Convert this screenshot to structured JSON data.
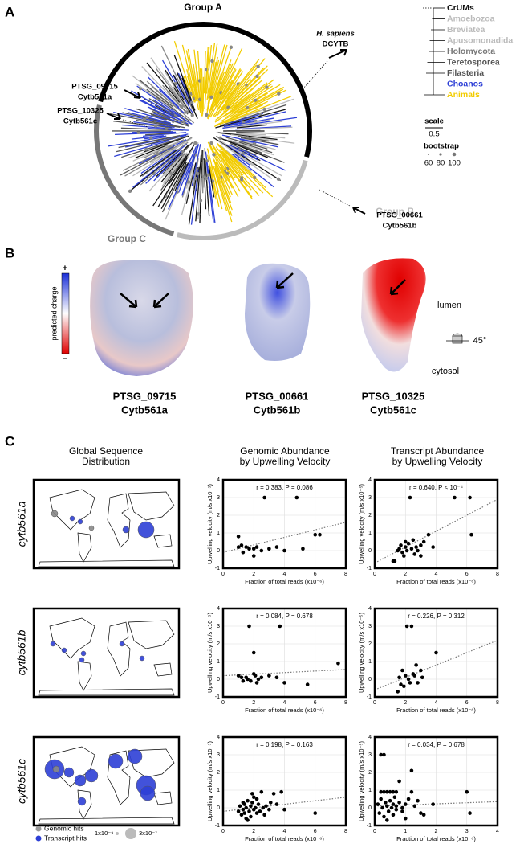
{
  "panel_a": {
    "label": "A",
    "group_a": "Group A",
    "group_b": "Group B",
    "group_c": "Group C",
    "callouts": [
      {
        "line1": "H. sapiens",
        "line2": "DCYTB"
      },
      {
        "line1": "PTSG_09715",
        "line2": "Cytb561a"
      },
      {
        "line1": "PTSG_10325",
        "line2": "Cytb561c"
      },
      {
        "line1": "PTSG_00661",
        "line2": "Cytb561b"
      }
    ],
    "legend": [
      {
        "name": "CrUMs",
        "color": "#111111"
      },
      {
        "name": "Amoebozoa",
        "color": "#bbbbbb"
      },
      {
        "name": "Breviatea",
        "color": "#bbbbbb"
      },
      {
        "name": "Apusomonadida",
        "color": "#bbbbbb"
      },
      {
        "name": "Holomycota",
        "color": "#777777"
      },
      {
        "name": "Teretosporea",
        "color": "#555555"
      },
      {
        "name": "Filasteria",
        "color": "#555555"
      },
      {
        "name": "Choanos",
        "color": "#2d3fd6"
      },
      {
        "name": "Animals",
        "color": "#f2cc00"
      }
    ],
    "scale_title": "scale",
    "scale_value": 0.5,
    "bootstrap_title": "bootstrap",
    "bootstrap_values": [
      60,
      80,
      100
    ]
  },
  "panel_b": {
    "label": "B",
    "charge_label": "predicted charge",
    "plus": "+",
    "minus": "–",
    "lumen": "lumen",
    "cytosol": "cytosol",
    "rotation": "45°",
    "proteins": [
      {
        "id": "PTSG_09715",
        "name": "Cytb561a"
      },
      {
        "id": "PTSG_00661",
        "name": "Cytb561b"
      },
      {
        "id": "PTSG_10325",
        "name": "Cytb561c"
      }
    ]
  },
  "panel_c": {
    "label": "C",
    "headers": [
      [
        "Global Sequence",
        "Distribution"
      ],
      [
        "Genomic Abundance",
        "by Upwelling Velocity"
      ],
      [
        "Transcript Abundance",
        "by Upwelling Velocity"
      ]
    ],
    "rows": [
      "cytb561a",
      "cytb561b",
      "cytb561c"
    ],
    "map_legend": {
      "genomic": "Genomic hits",
      "transcript": "Transcript hits",
      "small": "1x10⁻⁹",
      "large": "3x10⁻⁷"
    }
  },
  "chart_data": [
    {
      "type": "scatter",
      "annotation": "r = 0.383, P = 0.086",
      "xlabel": "Fraction of total reads (x10⁻⁶)",
      "ylabel": "Upwelling velocity (m/s x10⁻⁵)",
      "color": "#000000",
      "grid": true,
      "xlim": [
        0,
        8
      ],
      "ylim": [
        -1,
        4
      ],
      "xticks": [
        0,
        2,
        4,
        6,
        8
      ],
      "yticks": [
        -1,
        0,
        1,
        2,
        3,
        4
      ],
      "x": [
        1,
        1,
        1.2,
        1.3,
        1.5,
        1.7,
        2,
        2,
        2.2,
        2.5,
        2.7,
        3,
        3.5,
        4,
        4.8,
        5.2,
        6,
        6.3
      ],
      "y": [
        0.8,
        0.2,
        0.3,
        -0.1,
        0.2,
        0.1,
        -0.3,
        0.1,
        0.2,
        0,
        3,
        0.1,
        0.2,
        0,
        3,
        0.1,
        0.9,
        0.9
      ],
      "trendline": {
        "x": [
          0,
          8
        ],
        "y": [
          -0.1,
          1.6
        ]
      }
    },
    {
      "type": "scatter",
      "annotation": "r = 0.640, P < 10⁻⁴",
      "xlabel": "Fraction of total reads (x10⁻⁶)",
      "ylabel": "Upwelling velocity (m/s x10⁻⁵)",
      "color": "#000000",
      "grid": true,
      "xlim": [
        0,
        8
      ],
      "ylim": [
        -1,
        4
      ],
      "xticks": [
        0,
        2,
        4,
        6,
        8
      ],
      "yticks": [
        -1,
        0,
        1,
        2,
        3,
        4
      ],
      "x": [
        1.2,
        1.3,
        1.5,
        1.6,
        1.7,
        1.8,
        2,
        2,
        2.1,
        2.2,
        2.3,
        2.4,
        2.5,
        2.6,
        2.7,
        3,
        3,
        3.2,
        3.5,
        3.8,
        5.2,
        6.2,
        6.3,
        1.9,
        2.8
      ],
      "y": [
        -0.6,
        -0.6,
        0,
        0.1,
        0.3,
        -0.1,
        0.5,
        0.2,
        0,
        0.4,
        3,
        0.1,
        0.6,
        -0.2,
        0.2,
        0.3,
        -0.3,
        0.5,
        0.9,
        0.2,
        3,
        3,
        0.9,
        -0.3,
        0
      ],
      "trendline": {
        "x": [
          0,
          8
        ],
        "y": [
          -0.7,
          2.9
        ]
      }
    },
    {
      "type": "scatter",
      "annotation": "r = 0.084, P = 0.678",
      "xlabel": "Fraction of total reads (x10⁻⁶)",
      "ylabel": "Upwelling velocity (m/s x10⁻⁵)",
      "color": "#000000",
      "grid": true,
      "xlim": [
        0,
        8
      ],
      "ylim": [
        -1,
        4
      ],
      "xticks": [
        0,
        2,
        4,
        6,
        8
      ],
      "yticks": [
        -1,
        0,
        1,
        2,
        3,
        4
      ],
      "x": [
        1,
        1.2,
        1.3,
        1.5,
        1.6,
        1.7,
        1.8,
        2,
        2,
        2.1,
        2.2,
        2.5,
        3,
        3.5,
        3.7,
        4,
        5.5,
        7.5,
        2.3
      ],
      "y": [
        0.2,
        0.1,
        -0.1,
        0.1,
        0,
        3,
        -0.1,
        0.3,
        1.5,
        0.2,
        -0.2,
        0.1,
        0.2,
        0.1,
        3,
        -0.2,
        -0.3,
        0.9,
        0
      ],
      "trendline": {
        "x": [
          0,
          8
        ],
        "y": [
          0.2,
          0.55
        ]
      }
    },
    {
      "type": "scatter",
      "annotation": "r = 0.226, P = 0.312",
      "xlabel": "Fraction of total reads (x10⁻⁶)",
      "ylabel": "Upwelling velocity (m/s x10⁻⁵)",
      "color": "#000000",
      "grid": true,
      "xlim": [
        0,
        8
      ],
      "ylim": [
        -1,
        4
      ],
      "xticks": [
        0,
        2,
        4,
        6,
        8
      ],
      "yticks": [
        -1,
        0,
        1,
        2,
        3,
        4
      ],
      "x": [
        1.5,
        1.6,
        1.7,
        1.8,
        2,
        2.1,
        2.3,
        2.4,
        2.5,
        2.6,
        2.7,
        2.8,
        3,
        3.1,
        4,
        1.9,
        2.2
      ],
      "y": [
        -0.7,
        0.1,
        -0.3,
        0.5,
        0.2,
        3,
        -0.2,
        3,
        0.3,
        0.2,
        0.8,
        -0.2,
        0.5,
        0.1,
        1.5,
        -0.4,
        0
      ],
      "trendline": {
        "x": [
          0,
          8
        ],
        "y": [
          -0.6,
          2.2
        ]
      }
    },
    {
      "type": "scatter",
      "annotation": "r = 0.198, P = 0.163",
      "xlabel": "Fraction of total reads (x10⁻⁶)",
      "ylabel": "Upwelling velocity (m/s x10⁻⁵)",
      "color": "#000000",
      "grid": true,
      "xlim": [
        0,
        8
      ],
      "ylim": [
        -1,
        4
      ],
      "xticks": [
        0,
        2,
        4,
        6,
        8
      ],
      "yticks": [
        -1,
        0,
        1,
        2,
        3,
        4
      ],
      "x": [
        1,
        1.1,
        1.2,
        1.3,
        1.3,
        1.4,
        1.5,
        1.5,
        1.6,
        1.7,
        1.8,
        1.8,
        1.9,
        2,
        2,
        2.1,
        2.2,
        2.3,
        2.4,
        2.5,
        2.6,
        2.8,
        3,
        3.1,
        3.3,
        3.5,
        3.8,
        4,
        1.6,
        2.2,
        2.7,
        6,
        1.4,
        1.9
      ],
      "y": [
        -0.2,
        0.1,
        -0.4,
        0.3,
        -0.1,
        0.2,
        -0.6,
        0,
        0.4,
        -0.2,
        0.1,
        -0.5,
        0.3,
        -0.1,
        0.6,
        0,
        -0.3,
        0.2,
        -0.2,
        0.9,
        0,
        0.1,
        -0.1,
        0.3,
        0.8,
        0.2,
        0.9,
        -0.1,
        -0.7,
        0.5,
        -0.4,
        -0.3,
        -0.3,
        0.8
      ],
      "trendline": {
        "x": [
          0,
          8
        ],
        "y": [
          -0.2,
          0.6
        ]
      }
    },
    {
      "type": "scatter",
      "annotation": "r = 0.034, P = 0.678",
      "xlabel": "Fraction of total reads (x10⁻⁶)",
      "ylabel": "Upwelling velocity (m/s x10⁻⁵)",
      "color": "#000000",
      "grid": true,
      "xlim": [
        0,
        4
      ],
      "ylim": [
        -1,
        4
      ],
      "xticks": [
        0,
        1,
        2,
        3,
        4
      ],
      "yticks": [
        -1,
        0,
        1,
        2,
        3,
        4
      ],
      "x": [
        0.1,
        0.15,
        0.2,
        0.2,
        0.25,
        0.3,
        0.3,
        0.35,
        0.4,
        0.4,
        0.45,
        0.5,
        0.5,
        0.55,
        0.6,
        0.6,
        0.65,
        0.7,
        0.7,
        0.8,
        0.8,
        0.9,
        1,
        1,
        1.1,
        1.2,
        1.3,
        1.4,
        1.5,
        0.3,
        0.2,
        0.6,
        1.2,
        0.9,
        3,
        3.1,
        0.4,
        0.7,
        1.6,
        1.9
      ],
      "y": [
        0.2,
        -0.3,
        0.5,
        3,
        0,
        0.9,
        -0.5,
        0.3,
        0.1,
        0.9,
        -0.2,
        0.4,
        0.9,
        0,
        -0.4,
        0.2,
        0.6,
        -0.1,
        0.9,
        0.3,
        1.5,
        0,
        0.2,
        -0.6,
        0.5,
        2.1,
        0.1,
        0.4,
        -0.3,
        3,
        0.9,
        0.9,
        0.9,
        -0.2,
        0.9,
        -0.3,
        -0.7,
        0.1,
        -0.4,
        0.2
      ],
      "trendline": {
        "x": [
          0,
          4
        ],
        "y": [
          0.1,
          0.35
        ]
      }
    }
  ]
}
